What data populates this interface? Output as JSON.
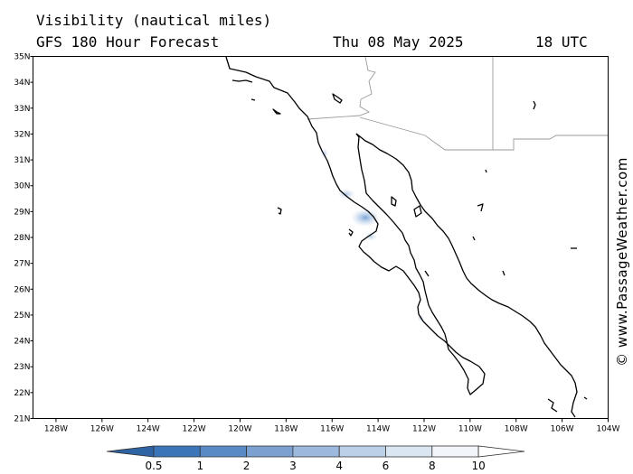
{
  "header": {
    "title": "Visibility (nautical miles)",
    "subtitle": "GFS 180 Hour Forecast",
    "date": "Thu 08 May 2025",
    "time": "18 UTC"
  },
  "credit": "© www.PassageWeather.com",
  "map": {
    "lon_range": [
      -129,
      -104
    ],
    "lat_range": [
      21,
      35
    ],
    "lon_ticks": [
      "128W",
      "126W",
      "124W",
      "122W",
      "120W",
      "118W",
      "116W",
      "114W",
      "112W",
      "110W",
      "108W",
      "106W",
      "104W"
    ],
    "lat_ticks": [
      "35N",
      "34N",
      "33N",
      "32N",
      "31N",
      "30N",
      "29N",
      "28N",
      "27N",
      "26N",
      "25N",
      "24N",
      "23N",
      "22N",
      "21N"
    ]
  },
  "colorbar": {
    "labels": [
      "0.5",
      "1",
      "2",
      "3",
      "4",
      "6",
      "8",
      "10"
    ],
    "colors": [
      "#3d76b8",
      "#5a8ac5",
      "#7ba1d1",
      "#9cb9dd",
      "#bcd0e8",
      "#dbe6f3",
      "#f2f6fb",
      "#ffffff"
    ]
  }
}
